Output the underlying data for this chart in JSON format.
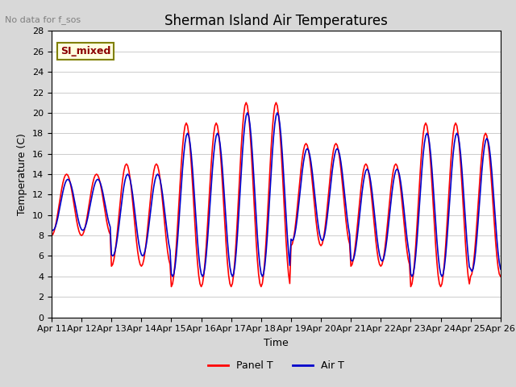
{
  "title": "Sherman Island Air Temperatures",
  "subtitle": "No data for f_sos",
  "xlabel": "Time",
  "ylabel": "Temperature (C)",
  "ylim": [
    0,
    28
  ],
  "yticks": [
    0,
    2,
    4,
    6,
    8,
    10,
    12,
    14,
    16,
    18,
    20,
    22,
    24,
    26,
    28
  ],
  "xlim": [
    0,
    360
  ],
  "xtick_labels": [
    "Apr 11",
    "Apr 12",
    "Apr 13",
    "Apr 14",
    "Apr 15",
    "Apr 16",
    "Apr 17",
    "Apr 18",
    "Apr 19",
    "Apr 20",
    "Apr 21",
    "Apr 22",
    "Apr 23",
    "Apr 24",
    "Apr 25",
    "Apr 26"
  ],
  "xtick_positions": [
    0,
    24,
    48,
    72,
    96,
    120,
    144,
    168,
    192,
    216,
    240,
    264,
    288,
    312,
    336,
    360
  ],
  "panel_t_color": "#FF0000",
  "air_t_color": "#0000CC",
  "bg_color": "#E8E8E8",
  "plot_bg_color": "#FFFFFF",
  "legend_label_box": "SI_mixed",
  "legend_items": [
    "Panel T",
    "Air T"
  ]
}
